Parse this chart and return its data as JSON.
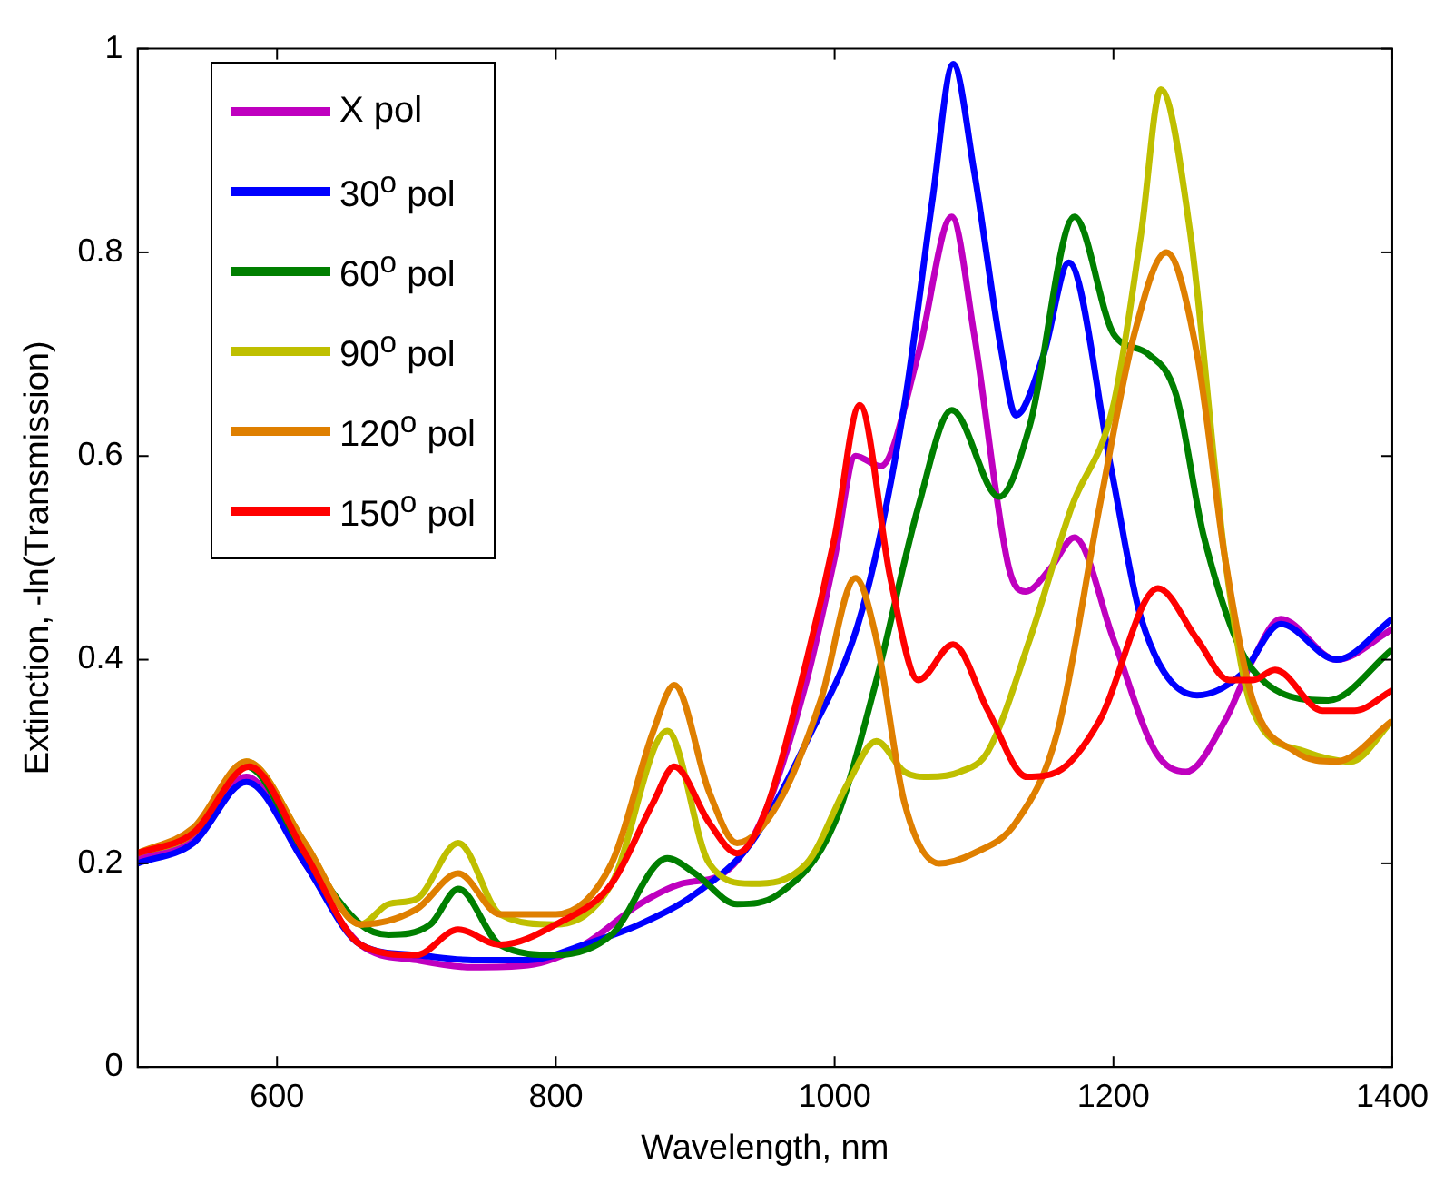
{
  "chart_data": {
    "type": "line",
    "xlabel": "Wavelength, nm",
    "ylabel": "Extinction, -ln(Transmission)",
    "xlim": [
      500,
      1400
    ],
    "xticks": [
      600,
      800,
      1000,
      1200,
      1400
    ],
    "ylim": [
      0,
      1
    ],
    "yticks": [
      0,
      0.2,
      0.4,
      0.6,
      0.8,
      1
    ],
    "grid": false,
    "legend": "top left",
    "series": [
      {
        "name": "X pol",
        "color": "#bf00bf",
        "x": [
          500,
          540,
          578,
          620,
          660,
          700,
          740,
          780,
          820,
          860,
          890,
          920,
          950,
          980,
          1000,
          1015,
          1033,
          1060,
          1084,
          1100,
          1125,
          1137,
          1155,
          1172,
          1200,
          1230,
          1252,
          1280,
          1300,
          1320,
          1360,
          1400
        ],
        "values": [
          0.205,
          0.225,
          0.285,
          0.2,
          0.12,
          0.105,
          0.098,
          0.1,
          0.12,
          0.16,
          0.18,
          0.19,
          0.25,
          0.38,
          0.5,
          0.6,
          0.59,
          0.7,
          0.835,
          0.72,
          0.49,
          0.467,
          0.49,
          0.52,
          0.42,
          0.31,
          0.29,
          0.34,
          0.4,
          0.44,
          0.4,
          0.43
        ]
      },
      {
        "name": "30$^{o}$ pol",
        "color": "#0000ff",
        "x": [
          500,
          540,
          578,
          620,
          660,
          700,
          740,
          780,
          820,
          860,
          900,
          940,
          980,
          1020,
          1050,
          1070,
          1085,
          1100,
          1120,
          1130,
          1150,
          1168,
          1198,
          1220,
          1260,
          1292,
          1320,
          1360,
          1400
        ],
        "values": [
          0.2,
          0.22,
          0.28,
          0.2,
          0.12,
          0.11,
          0.105,
          0.105,
          0.12,
          0.14,
          0.17,
          0.22,
          0.32,
          0.45,
          0.65,
          0.85,
          0.985,
          0.88,
          0.7,
          0.64,
          0.7,
          0.79,
          0.59,
          0.44,
          0.365,
          0.386,
          0.435,
          0.4,
          0.44
        ]
      },
      {
        "name": "60$^{o}$ pol",
        "color": "#007f00",
        "x": [
          500,
          540,
          578,
          620,
          660,
          680,
          710,
          730,
          760,
          800,
          840,
          880,
          900,
          930,
          960,
          1000,
          1030,
          1060,
          1084,
          1118,
          1140,
          1172,
          1200,
          1225,
          1245,
          1265,
          1300,
          1354,
          1400
        ],
        "values": [
          0.21,
          0.23,
          0.295,
          0.21,
          0.14,
          0.13,
          0.14,
          0.175,
          0.12,
          0.11,
          0.13,
          0.205,
          0.19,
          0.16,
          0.17,
          0.24,
          0.38,
          0.55,
          0.645,
          0.56,
          0.63,
          0.835,
          0.72,
          0.7,
          0.66,
          0.52,
          0.39,
          0.36,
          0.41
        ]
      },
      {
        "name": "90$^{o}$ pol",
        "color": "#bfbf00",
        "x": [
          500,
          540,
          578,
          620,
          660,
          680,
          700,
          730,
          760,
          800,
          840,
          880,
          910,
          940,
          980,
          1010,
          1030,
          1050,
          1067,
          1090,
          1110,
          1140,
          1170,
          1200,
          1220,
          1234,
          1255,
          1280,
          1300,
          1337,
          1370,
          1400
        ],
        "values": [
          0.21,
          0.23,
          0.3,
          0.22,
          0.14,
          0.16,
          0.165,
          0.22,
          0.15,
          0.14,
          0.18,
          0.33,
          0.2,
          0.18,
          0.2,
          0.28,
          0.32,
          0.29,
          0.285,
          0.29,
          0.31,
          0.42,
          0.55,
          0.65,
          0.82,
          0.96,
          0.82,
          0.5,
          0.35,
          0.31,
          0.3,
          0.34
        ]
      },
      {
        "name": "120$^{o}$ pol",
        "color": "#df7f00",
        "x": [
          500,
          540,
          578,
          620,
          660,
          700,
          730,
          760,
          800,
          840,
          870,
          885,
          910,
          930,
          960,
          990,
          1015,
          1030,
          1050,
          1075,
          1100,
          1130,
          1160,
          1190,
          1215,
          1238,
          1260,
          1280,
          1300,
          1330,
          1360,
          1400
        ],
        "values": [
          0.21,
          0.235,
          0.3,
          0.22,
          0.14,
          0.155,
          0.19,
          0.15,
          0.15,
          0.2,
          0.33,
          0.375,
          0.27,
          0.22,
          0.26,
          0.36,
          0.48,
          0.42,
          0.26,
          0.2,
          0.21,
          0.24,
          0.33,
          0.55,
          0.72,
          0.8,
          0.7,
          0.5,
          0.36,
          0.31,
          0.3,
          0.34
        ]
      },
      {
        "name": "150$^{o}$ pol",
        "color": "#ff0000",
        "x": [
          500,
          540,
          580,
          620,
          660,
          700,
          730,
          760,
          800,
          840,
          870,
          885,
          910,
          930,
          950,
          980,
          1000,
          1018,
          1040,
          1060,
          1085,
          1110,
          1138,
          1160,
          1190,
          1232,
          1260,
          1283,
          1300,
          1316,
          1350,
          1373,
          1400
        ],
        "values": [
          0.21,
          0.23,
          0.295,
          0.21,
          0.12,
          0.11,
          0.135,
          0.12,
          0.14,
          0.18,
          0.26,
          0.295,
          0.24,
          0.21,
          0.25,
          0.4,
          0.52,
          0.65,
          0.48,
          0.38,
          0.415,
          0.35,
          0.285,
          0.29,
          0.34,
          0.47,
          0.42,
          0.38,
          0.38,
          0.39,
          0.35,
          0.35,
          0.37
        ]
      }
    ]
  }
}
